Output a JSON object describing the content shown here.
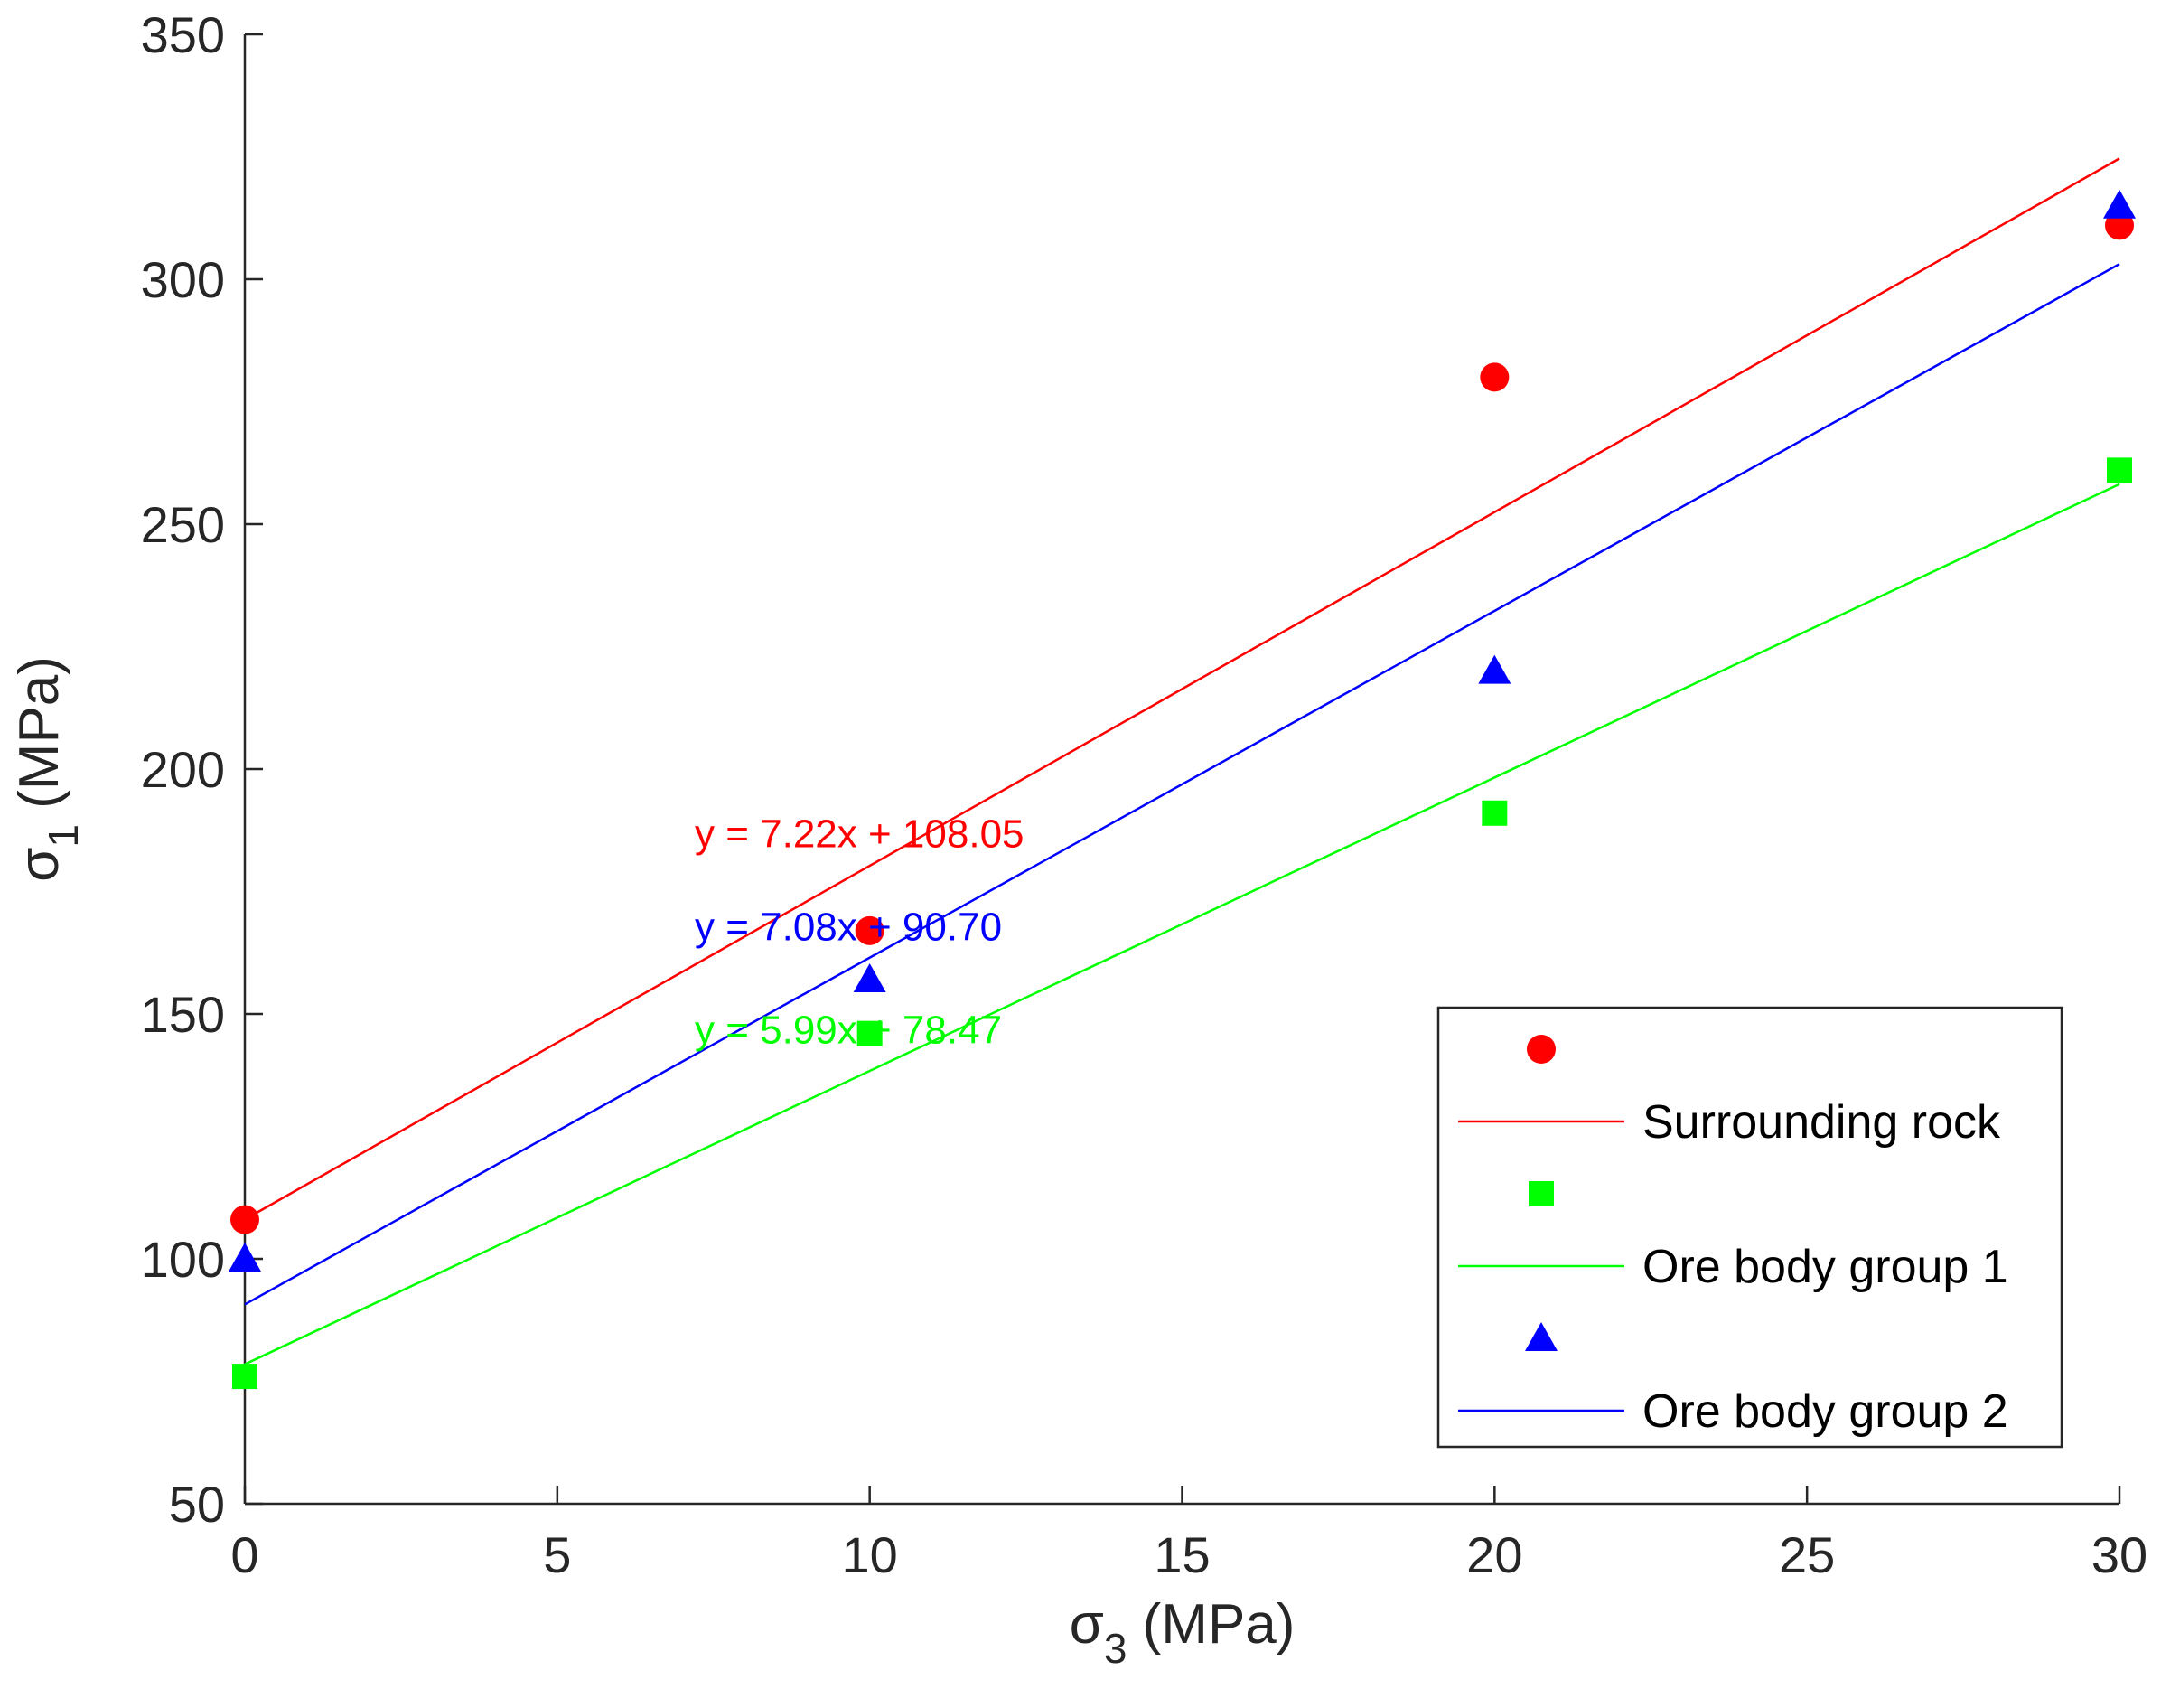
{
  "chart_data": {
    "type": "scatter",
    "title": "",
    "xlabel": {
      "symbol": "σ",
      "sub": "3",
      "unit": " (MPa)"
    },
    "ylabel": {
      "symbol": "σ",
      "sub": "1",
      "unit": " (MPa)"
    },
    "xlim": [
      0,
      30
    ],
    "ylim": [
      50,
      350
    ],
    "xticks": [
      0,
      5,
      10,
      15,
      20,
      25,
      30
    ],
    "yticks": [
      50,
      100,
      150,
      200,
      250,
      300,
      350
    ],
    "grid": false,
    "legend_position": "bottom-right",
    "series": [
      {
        "name": "Surrounding rock",
        "color": "#ff0000",
        "marker": "circle",
        "points": [
          [
            0,
            108
          ],
          [
            10,
            167
          ],
          [
            20,
            280
          ],
          [
            30,
            311
          ]
        ],
        "fit": {
          "slope": 7.22,
          "intercept": 108.05,
          "label": "y = 7.22x + 108.05",
          "label_at": [
            7.2,
            184
          ]
        }
      },
      {
        "name": "Ore body group 1",
        "color": "#00ff00",
        "marker": "square",
        "points": [
          [
            0,
            76
          ],
          [
            10,
            146
          ],
          [
            20,
            191
          ],
          [
            30,
            261
          ]
        ],
        "fit": {
          "slope": 5.99,
          "intercept": 78.47,
          "label": "y = 5.99x + 78.47",
          "label_at": [
            7.2,
            144
          ]
        }
      },
      {
        "name": "Ore body group 2",
        "color": "#0000ff",
        "marker": "triangle",
        "points": [
          [
            0,
            100
          ],
          [
            10,
            157
          ],
          [
            20,
            220
          ],
          [
            30,
            315
          ]
        ],
        "fit": {
          "slope": 7.08,
          "intercept": 90.7,
          "label": "y = 7.08x + 90.70",
          "label_at": [
            7.2,
            165
          ]
        }
      }
    ]
  }
}
